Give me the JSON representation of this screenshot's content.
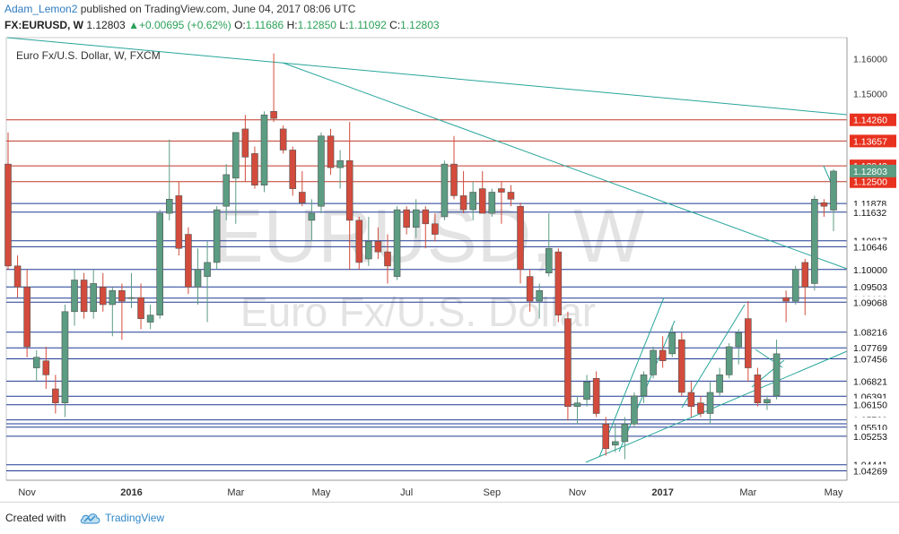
{
  "header": {
    "author": "Adam_Lemon2",
    "published_text": " published on TradingView.com, June 04, 2017 08:06 UTC",
    "symbol": "FX:EURUSD, W",
    "last": "1.12803",
    "change_arrow": "▲",
    "change": "+0.00695 (+0.62%)",
    "o_label": "O:",
    "o_value": "1.11686",
    "h_label": "H:",
    "h_value": "1.12850",
    "l_label": "L:",
    "l_value": "1.11092",
    "c_label": "C:",
    "c_value": "1.12803"
  },
  "footer": {
    "created_with": "Created with",
    "brand": "TradingView",
    "logo_icon": "tradingview-cloud-icon"
  },
  "colors": {
    "up_candle": "#5b9c82",
    "down_candle": "#d24b3c",
    "red_line": "#c0392b",
    "blue_line": "#1f3a93",
    "trend_line": "#27a59a",
    "label_red": "#e8321f",
    "label_dark": "#2c3e50",
    "label_green": "#5b9c82"
  },
  "chart_data": {
    "type": "candlestick",
    "title": "Euro Fx/U.S. Dollar, W, FXCM",
    "watermark_symbol": "EURUSD, W",
    "watermark_name": "Euro Fx/U.S. Dollar",
    "x_ticks": [
      "Nov",
      "2016",
      "Mar",
      "May",
      "Jul",
      "Sep",
      "Nov",
      "2017",
      "Mar",
      "May"
    ],
    "y_ticks": [
      1.16,
      1.15
    ],
    "ylim": [
      1.04,
      1.166
    ],
    "grid": false,
    "last_price": 1.12803,
    "resistance_levels": [
      1.1426,
      1.13657,
      1.12949,
      1.125
    ],
    "support_levels": [
      1.11878,
      1.11632,
      1.10817,
      1.10646,
      1.1,
      1.09503,
      1.09183,
      1.09068,
      1.08216,
      1.07769,
      1.07456,
      1.06821,
      1.06391,
      1.0615,
      1.0572,
      1.05606,
      1.0551,
      1.05253,
      1.04441,
      1.04269
    ],
    "candles": [
      {
        "o": 1.13,
        "h": 1.139,
        "l": 1.1,
        "c": 1.101
      },
      {
        "o": 1.101,
        "h": 1.104,
        "l": 1.092,
        "c": 1.095
      },
      {
        "o": 1.095,
        "h": 1.1,
        "l": 1.075,
        "c": 1.078
      },
      {
        "o": 1.072,
        "h": 1.077,
        "l": 1.068,
        "c": 1.075
      },
      {
        "o": 1.074,
        "h": 1.078,
        "l": 1.066,
        "c": 1.07
      },
      {
        "o": 1.066,
        "h": 1.07,
        "l": 1.059,
        "c": 1.062
      },
      {
        "o": 1.062,
        "h": 1.09,
        "l": 1.058,
        "c": 1.088
      },
      {
        "o": 1.088,
        "h": 1.1,
        "l": 1.084,
        "c": 1.097
      },
      {
        "o": 1.097,
        "h": 1.099,
        "l": 1.086,
        "c": 1.088
      },
      {
        "o": 1.088,
        "h": 1.1,
        "l": 1.086,
        "c": 1.096
      },
      {
        "o": 1.095,
        "h": 1.099,
        "l": 1.088,
        "c": 1.09
      },
      {
        "o": 1.09,
        "h": 1.095,
        "l": 1.081,
        "c": 1.094
      },
      {
        "o": 1.094,
        "h": 1.096,
        "l": 1.08,
        "c": 1.091
      },
      {
        "o": 1.092,
        "h": 1.099,
        "l": 1.089,
        "c": 1.092
      },
      {
        "o": 1.092,
        "h": 1.096,
        "l": 1.083,
        "c": 1.086
      },
      {
        "o": 1.085,
        "h": 1.09,
        "l": 1.083,
        "c": 1.087
      },
      {
        "o": 1.087,
        "h": 1.117,
        "l": 1.086,
        "c": 1.116
      },
      {
        "o": 1.116,
        "h": 1.137,
        "l": 1.114,
        "c": 1.12
      },
      {
        "o": 1.121,
        "h": 1.125,
        "l": 1.104,
        "c": 1.106
      },
      {
        "o": 1.11,
        "h": 1.112,
        "l": 1.093,
        "c": 1.095
      },
      {
        "o": 1.095,
        "h": 1.106,
        "l": 1.09,
        "c": 1.1
      },
      {
        "o": 1.098,
        "h": 1.108,
        "l": 1.085,
        "c": 1.102
      },
      {
        "o": 1.102,
        "h": 1.118,
        "l": 1.1,
        "c": 1.117
      },
      {
        "o": 1.118,
        "h": 1.13,
        "l": 1.114,
        "c": 1.127
      },
      {
        "o": 1.126,
        "h": 1.138,
        "l": 1.113,
        "c": 1.139
      },
      {
        "o": 1.14,
        "h": 1.144,
        "l": 1.125,
        "c": 1.132
      },
      {
        "o": 1.133,
        "h": 1.135,
        "l": 1.123,
        "c": 1.124
      },
      {
        "o": 1.124,
        "h": 1.145,
        "l": 1.122,
        "c": 1.144
      },
      {
        "o": 1.145,
        "h": 1.1615,
        "l": 1.142,
        "c": 1.143
      },
      {
        "o": 1.14,
        "h": 1.141,
        "l": 1.133,
        "c": 1.134
      },
      {
        "o": 1.134,
        "h": 1.135,
        "l": 1.121,
        "c": 1.123
      },
      {
        "o": 1.122,
        "h": 1.128,
        "l": 1.118,
        "c": 1.119
      },
      {
        "o": 1.114,
        "h": 1.12,
        "l": 1.108,
        "c": 1.116
      },
      {
        "o": 1.118,
        "h": 1.139,
        "l": 1.116,
        "c": 1.138
      },
      {
        "o": 1.138,
        "h": 1.14,
        "l": 1.127,
        "c": 1.129
      },
      {
        "o": 1.129,
        "h": 1.134,
        "l": 1.123,
        "c": 1.131
      },
      {
        "o": 1.131,
        "h": 1.142,
        "l": 1.1,
        "c": 1.114
      },
      {
        "o": 1.114,
        "h": 1.115,
        "l": 1.1,
        "c": 1.102
      },
      {
        "o": 1.103,
        "h": 1.115,
        "l": 1.101,
        "c": 1.108
      },
      {
        "o": 1.108,
        "h": 1.112,
        "l": 1.103,
        "c": 1.105
      },
      {
        "o": 1.105,
        "h": 1.11,
        "l": 1.096,
        "c": 1.101
      },
      {
        "o": 1.098,
        "h": 1.118,
        "l": 1.097,
        "c": 1.117
      },
      {
        "o": 1.117,
        "h": 1.118,
        "l": 1.11,
        "c": 1.112
      },
      {
        "o": 1.112,
        "h": 1.12,
        "l": 1.109,
        "c": 1.117
      },
      {
        "o": 1.117,
        "h": 1.118,
        "l": 1.106,
        "c": 1.113
      },
      {
        "o": 1.113,
        "h": 1.116,
        "l": 1.108,
        "c": 1.11
      },
      {
        "o": 1.115,
        "h": 1.131,
        "l": 1.114,
        "c": 1.13
      },
      {
        "o": 1.13,
        "h": 1.138,
        "l": 1.12,
        "c": 1.121
      },
      {
        "o": 1.121,
        "h": 1.128,
        "l": 1.116,
        "c": 1.117
      },
      {
        "o": 1.117,
        "h": 1.125,
        "l": 1.114,
        "c": 1.122
      },
      {
        "o": 1.123,
        "h": 1.128,
        "l": 1.116,
        "c": 1.116
      },
      {
        "o": 1.116,
        "h": 1.123,
        "l": 1.115,
        "c": 1.122
      },
      {
        "o": 1.123,
        "h": 1.125,
        "l": 1.113,
        "c": 1.122
      },
      {
        "o": 1.122,
        "h": 1.124,
        "l": 1.118,
        "c": 1.12
      },
      {
        "o": 1.118,
        "h": 1.119,
        "l": 1.096,
        "c": 1.1
      },
      {
        "o": 1.098,
        "h": 1.1,
        "l": 1.088,
        "c": 1.091
      },
      {
        "o": 1.091,
        "h": 1.096,
        "l": 1.086,
        "c": 1.094
      },
      {
        "o": 1.099,
        "h": 1.116,
        "l": 1.098,
        "c": 1.106
      },
      {
        "o": 1.105,
        "h": 1.106,
        "l": 1.085,
        "c": 1.087
      },
      {
        "o": 1.086,
        "h": 1.088,
        "l": 1.057,
        "c": 1.061
      },
      {
        "o": 1.061,
        "h": 1.064,
        "l": 1.056,
        "c": 1.062
      },
      {
        "o": 1.063,
        "h": 1.07,
        "l": 1.061,
        "c": 1.068
      },
      {
        "o": 1.069,
        "h": 1.071,
        "l": 1.058,
        "c": 1.059
      },
      {
        "o": 1.056,
        "h": 1.058,
        "l": 1.047,
        "c": 1.049
      },
      {
        "o": 1.05,
        "h": 1.056,
        "l": 1.048,
        "c": 1.051
      },
      {
        "o": 1.051,
        "h": 1.058,
        "l": 1.046,
        "c": 1.056
      },
      {
        "o": 1.056,
        "h": 1.065,
        "l": 1.055,
        "c": 1.064
      },
      {
        "o": 1.064,
        "h": 1.071,
        "l": 1.062,
        "c": 1.07
      },
      {
        "o": 1.07,
        "h": 1.078,
        "l": 1.069,
        "c": 1.077
      },
      {
        "o": 1.077,
        "h": 1.081,
        "l": 1.072,
        "c": 1.074
      },
      {
        "o": 1.076,
        "h": 1.084,
        "l": 1.075,
        "c": 1.082
      },
      {
        "o": 1.08,
        "h": 1.082,
        "l": 1.064,
        "c": 1.065
      },
      {
        "o": 1.065,
        "h": 1.068,
        "l": 1.058,
        "c": 1.061
      },
      {
        "o": 1.062,
        "h": 1.064,
        "l": 1.058,
        "c": 1.059
      },
      {
        "o": 1.059,
        "h": 1.068,
        "l": 1.056,
        "c": 1.065
      },
      {
        "o": 1.065,
        "h": 1.072,
        "l": 1.064,
        "c": 1.07
      },
      {
        "o": 1.07,
        "h": 1.079,
        "l": 1.069,
        "c": 1.078
      },
      {
        "o": 1.078,
        "h": 1.083,
        "l": 1.073,
        "c": 1.082
      },
      {
        "o": 1.086,
        "h": 1.091,
        "l": 1.068,
        "c": 1.072
      },
      {
        "o": 1.07,
        "h": 1.072,
        "l": 1.061,
        "c": 1.062
      },
      {
        "o": 1.062,
        "h": 1.064,
        "l": 1.06,
        "c": 1.063
      },
      {
        "o": 1.064,
        "h": 1.08,
        "l": 1.063,
        "c": 1.076
      },
      {
        "o": 1.092,
        "h": 1.094,
        "l": 1.085,
        "c": 1.091
      },
      {
        "o": 1.091,
        "h": 1.101,
        "l": 1.09,
        "c": 1.1
      },
      {
        "o": 1.102,
        "h": 1.103,
        "l": 1.087,
        "c": 1.095
      },
      {
        "o": 1.096,
        "h": 1.121,
        "l": 1.094,
        "c": 1.12
      },
      {
        "o": 1.119,
        "h": 1.12,
        "l": 1.115,
        "c": 1.118
      },
      {
        "o": 1.1169,
        "h": 1.1285,
        "l": 1.1109,
        "c": 1.128
      }
    ]
  }
}
